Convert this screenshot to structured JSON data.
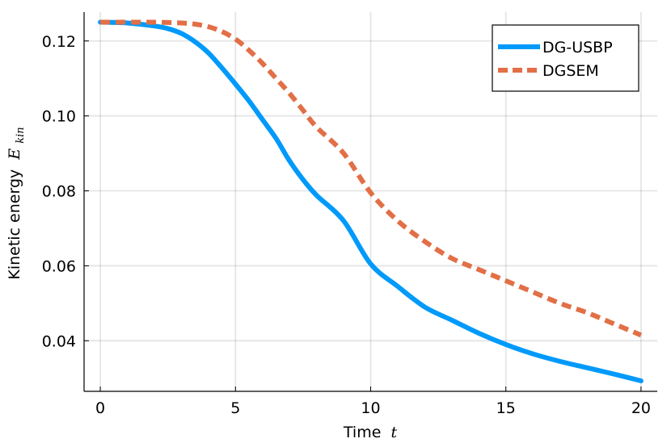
{
  "chart_data": {
    "type": "line",
    "xlabel": "Time",
    "xlabel_math": "t",
    "ylabel": "Kinetic energy",
    "ylabel_math": "E",
    "ylabel_math_sub": "kin",
    "xlim": [
      -0.6,
      20.6
    ],
    "ylim": [
      0.0265,
      0.1277
    ],
    "x_ticks": [
      0,
      5,
      10,
      15,
      20
    ],
    "x_tick_labels": [
      "0",
      "5",
      "10",
      "15",
      "20"
    ],
    "y_ticks": [
      0.04,
      0.06,
      0.08,
      0.1,
      0.12
    ],
    "y_tick_labels": [
      "0.04",
      "0.06",
      "0.08",
      "0.10",
      "0.12"
    ],
    "grid": true,
    "legend_position": "top-right",
    "series": [
      {
        "name": "DG-USBP",
        "color": "#009AFA",
        "style": "solid",
        "x": [
          0,
          1,
          2,
          2.5,
          3,
          3.5,
          4,
          4.5,
          5,
          5.5,
          6,
          6.5,
          7,
          7.5,
          8,
          9,
          10,
          11,
          12,
          13,
          14,
          15,
          16,
          17,
          18,
          19,
          20
        ],
        "y": [
          0.125,
          0.1248,
          0.124,
          0.1233,
          0.122,
          0.1198,
          0.1168,
          0.1128,
          0.1085,
          0.104,
          0.099,
          0.094,
          0.088,
          0.083,
          0.0788,
          0.072,
          0.0605,
          0.0545,
          0.049,
          0.0455,
          0.042,
          0.039,
          0.0365,
          0.0345,
          0.0328,
          0.0311,
          0.0293
        ]
      },
      {
        "name": "DGSEM",
        "color": "#E26F46",
        "style": "dashed",
        "x": [
          0,
          1,
          2,
          3,
          3.5,
          4,
          4.5,
          5,
          5.5,
          6,
          6.5,
          7,
          7.5,
          8,
          9,
          10,
          11,
          12,
          13,
          14,
          15,
          16,
          17,
          18,
          19,
          20
        ],
        "y": [
          0.125,
          0.125,
          0.125,
          0.1248,
          0.1245,
          0.1238,
          0.1225,
          0.1205,
          0.1175,
          0.114,
          0.11,
          0.106,
          0.1015,
          0.097,
          0.09,
          0.0795,
          0.072,
          0.0665,
          0.062,
          0.059,
          0.056,
          0.053,
          0.05,
          0.0475,
          0.0445,
          0.0415
        ]
      }
    ]
  }
}
